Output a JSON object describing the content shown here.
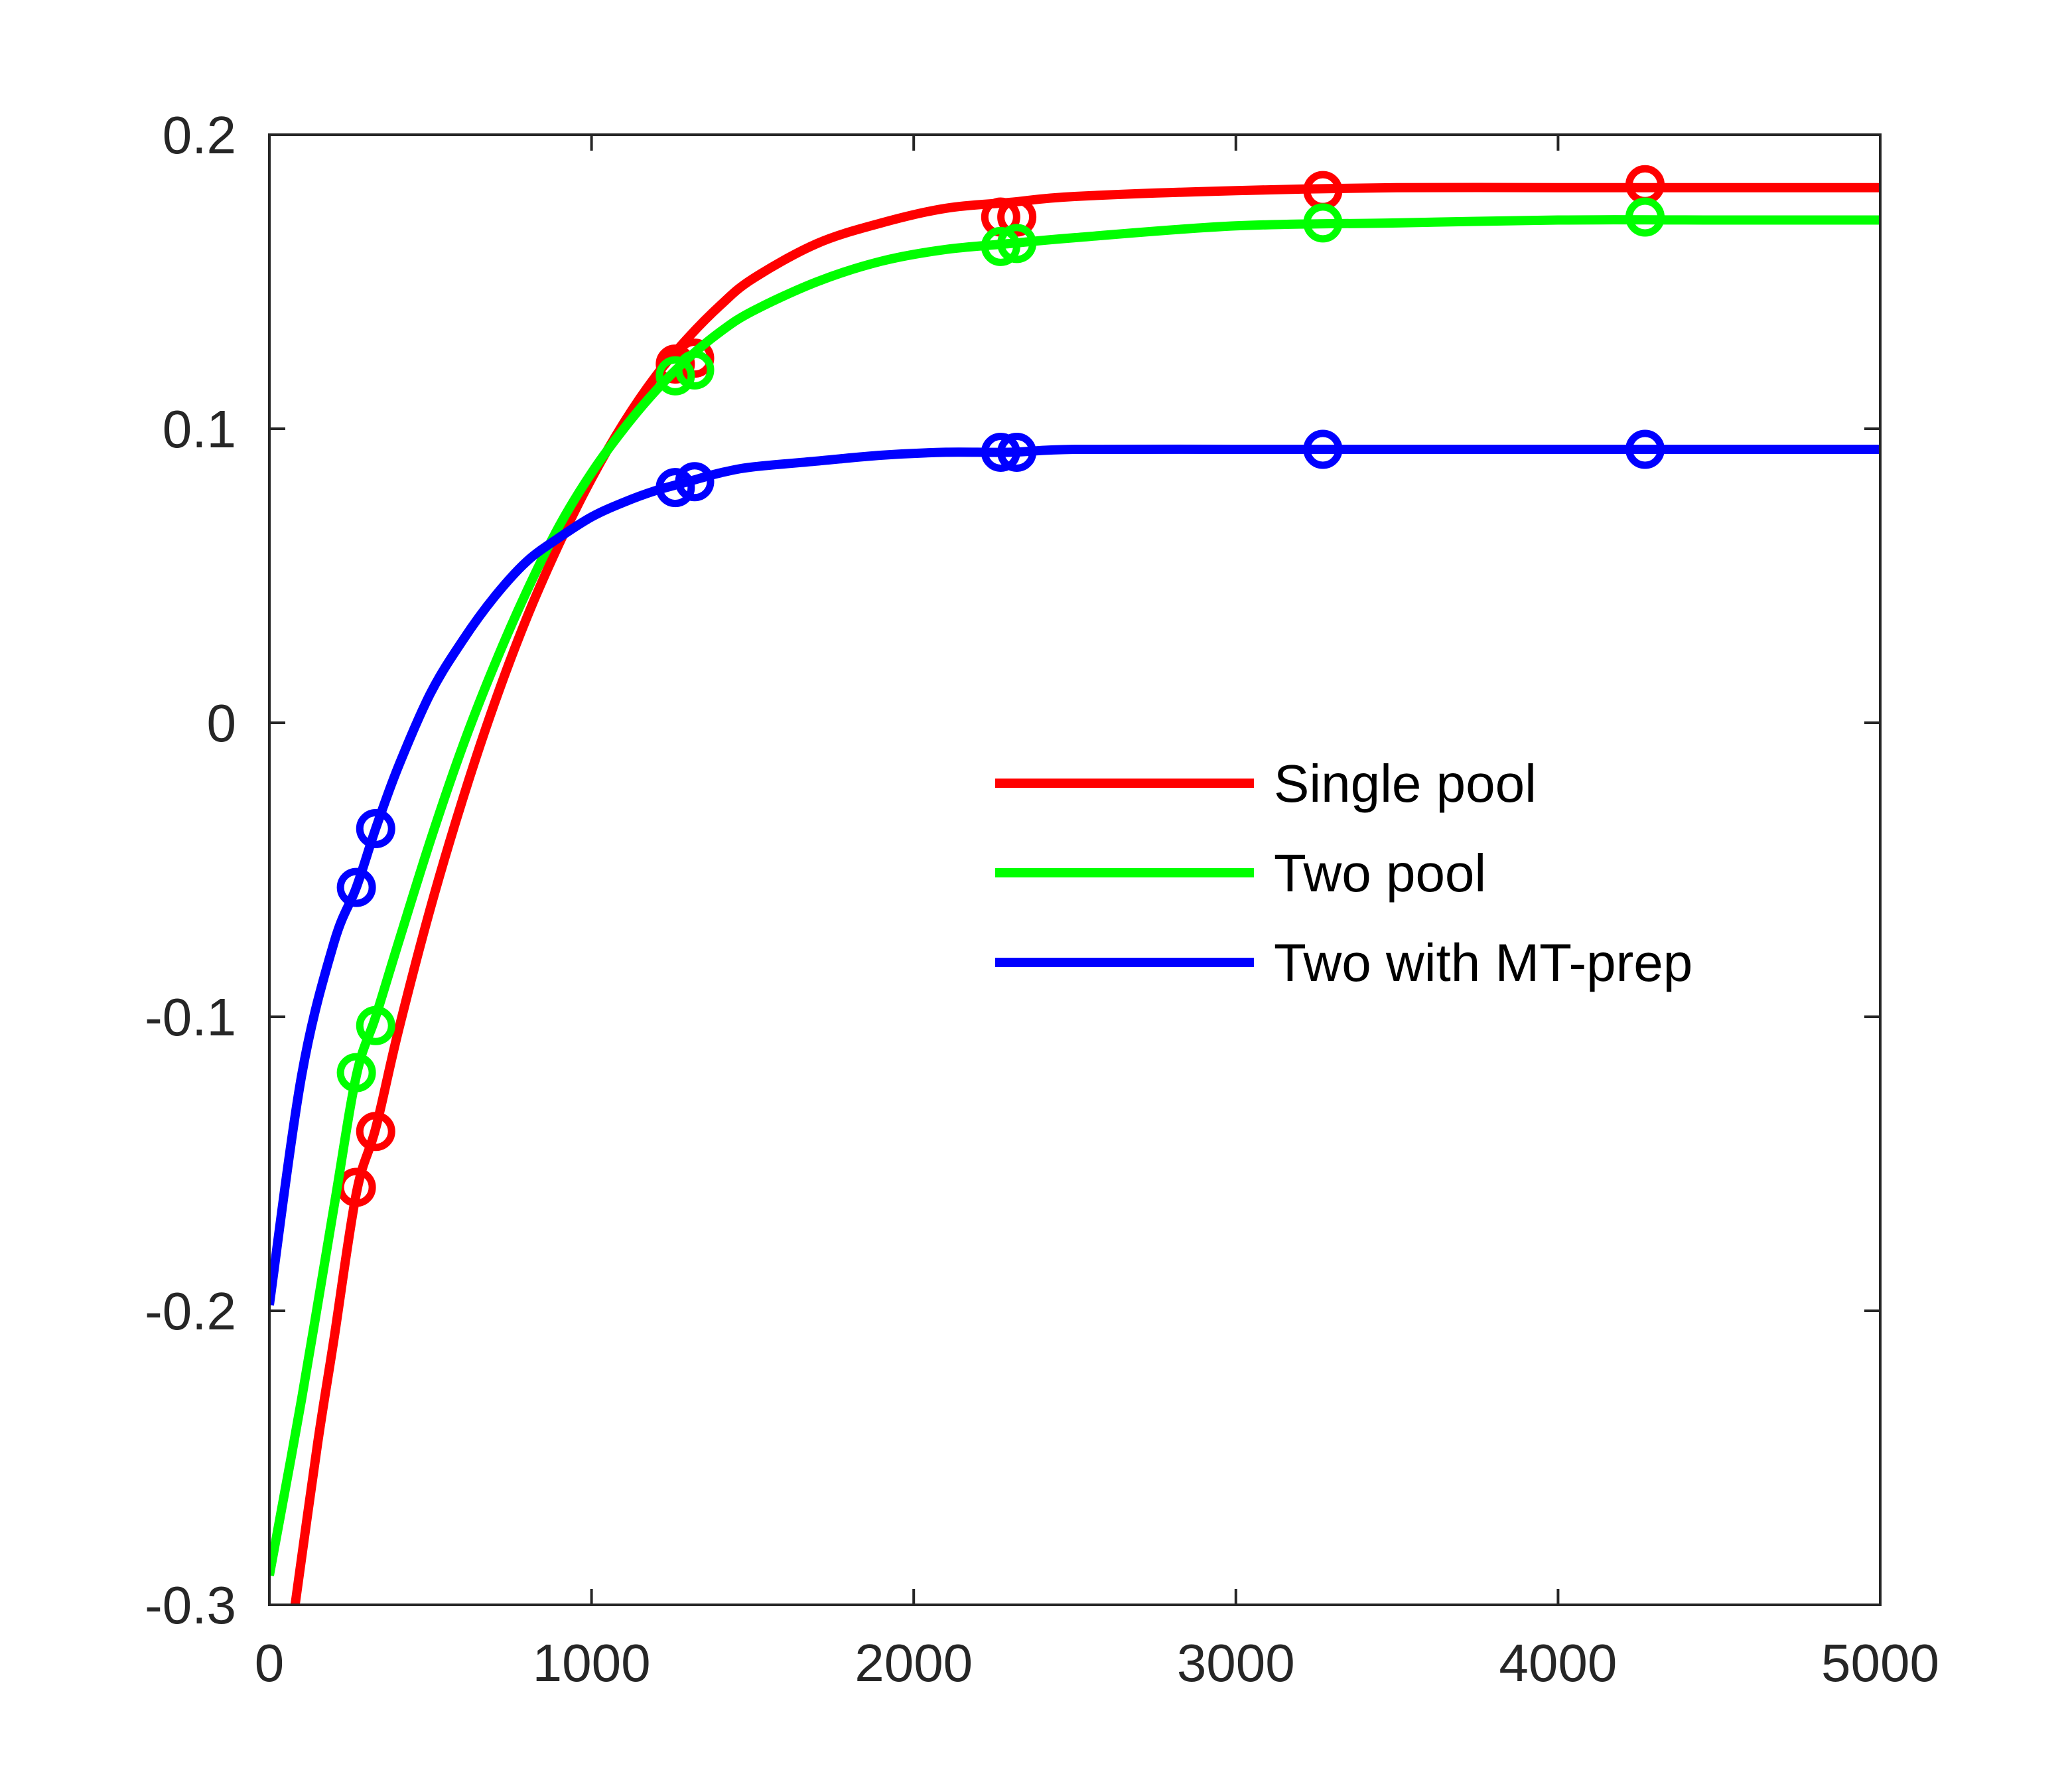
{
  "chart_data": {
    "type": "line",
    "title": "",
    "xlabel": "",
    "ylabel": "",
    "xlim": [
      0,
      5000
    ],
    "ylim": [
      -0.3,
      0.2
    ],
    "x_ticks": [
      0,
      1000,
      2000,
      3000,
      4000,
      5000
    ],
    "x_tick_labels": [
      "0",
      "1000",
      "2000",
      "3000",
      "4000",
      "5000"
    ],
    "y_ticks": [
      0.2,
      0.1,
      0,
      -0.1,
      -0.2,
      -0.3
    ],
    "y_tick_labels": [
      "0.2",
      "0.1",
      "0",
      "-0.1",
      "-0.2",
      "-0.3"
    ],
    "grid": false,
    "box": true,
    "legend": {
      "position": "center-right",
      "box": false
    },
    "series": [
      {
        "name": "Single pool",
        "color": "#ff0000",
        "curve": {
          "x": [
            80,
            150,
            200,
            270,
            330,
            400,
            500,
            600,
            700,
            800,
            900,
            1000,
            1100,
            1200,
            1300,
            1400,
            1500,
            1700,
            1900,
            2100,
            2300,
            2500,
            3000,
            3500,
            4000,
            4500,
            5000
          ],
          "y": [
            -0.3,
            -0.245,
            -0.21,
            -0.16,
            -0.138,
            -0.105,
            -0.063,
            -0.026,
            0.007,
            0.036,
            0.061,
            0.083,
            0.102,
            0.118,
            0.131,
            0.142,
            0.151,
            0.163,
            0.17,
            0.175,
            0.177,
            0.179,
            0.181,
            0.182,
            0.182,
            0.182,
            0.182
          ]
        },
        "markers": {
          "x": [
            270,
            330,
            1260,
            1320,
            2270,
            2320,
            3270,
            4270
          ],
          "y": [
            -0.158,
            -0.139,
            0.122,
            0.124,
            0.172,
            0.172,
            0.181,
            0.183
          ]
        }
      },
      {
        "name": "Two pool",
        "color": "#00ff00",
        "curve": {
          "x": [
            0,
            100,
            200,
            270,
            330,
            400,
            500,
            600,
            700,
            800,
            900,
            1000,
            1100,
            1200,
            1300,
            1400,
            1500,
            1700,
            1900,
            2100,
            2300,
            2500,
            3000,
            3500,
            4000,
            4500,
            5000
          ],
          "y": [
            -0.29,
            -0.23,
            -0.165,
            -0.12,
            -0.1,
            -0.075,
            -0.04,
            -0.008,
            0.02,
            0.045,
            0.067,
            0.085,
            0.1,
            0.113,
            0.124,
            0.133,
            0.14,
            0.15,
            0.157,
            0.161,
            0.163,
            0.165,
            0.169,
            0.17,
            0.171,
            0.171,
            0.171
          ]
        },
        "markers": {
          "x": [
            270,
            330,
            1260,
            1320,
            2270,
            2320,
            3270,
            4270
          ],
          "y": [
            -0.119,
            -0.103,
            0.118,
            0.12,
            0.162,
            0.163,
            0.17,
            0.172
          ]
        }
      },
      {
        "name": "Two with MT-prep",
        "color": "#0000ff",
        "curve": {
          "x": [
            0,
            100,
            200,
            270,
            330,
            400,
            500,
            600,
            700,
            800,
            900,
            1000,
            1100,
            1200,
            1300,
            1400,
            1500,
            1700,
            1900,
            2100,
            2300,
            2500,
            3000,
            3500,
            4000,
            4500,
            5000
          ],
          "y": [
            -0.198,
            -0.12,
            -0.075,
            -0.056,
            -0.036,
            -0.015,
            0.01,
            0.028,
            0.043,
            0.055,
            0.063,
            0.07,
            0.075,
            0.079,
            0.082,
            0.085,
            0.087,
            0.089,
            0.091,
            0.092,
            0.092,
            0.093,
            0.093,
            0.093,
            0.093,
            0.093,
            0.093
          ]
        },
        "markers": {
          "x": [
            270,
            330,
            1260,
            1320,
            2270,
            2320,
            3270,
            4270
          ],
          "y": [
            -0.056,
            -0.036,
            0.08,
            0.082,
            0.092,
            0.092,
            0.093,
            0.093
          ]
        }
      }
    ]
  }
}
